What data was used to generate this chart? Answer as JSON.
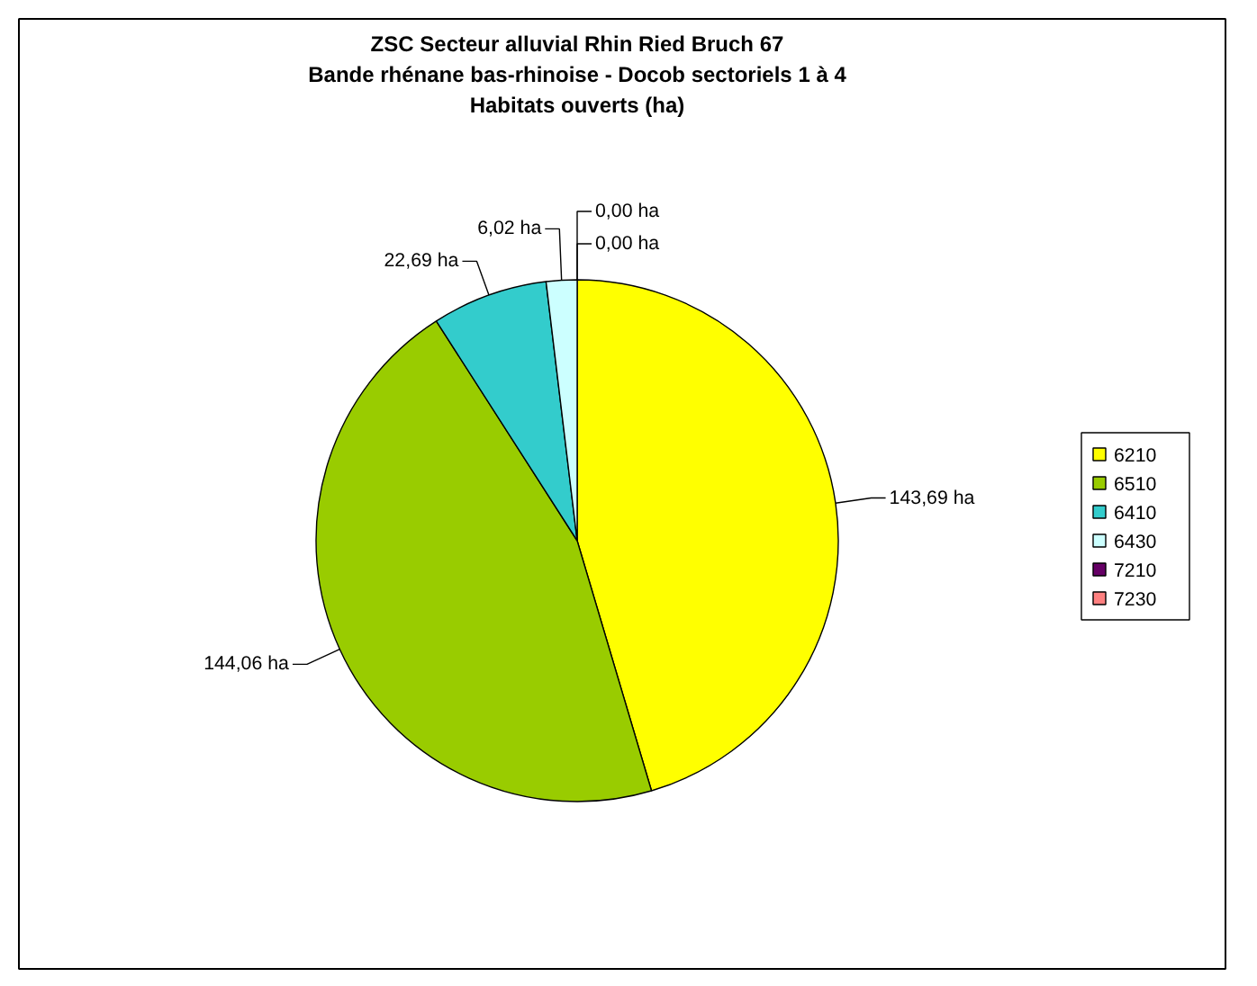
{
  "chart_data": {
    "type": "pie",
    "title": "ZSC Secteur alluvial Rhin Ried Bruch 67",
    "subtitle": "Bande rhénane bas-rhinoise - Docob sectoriels 1 à 4\nHabitats ouverts (ha)",
    "categories": [
      "6210",
      "6510",
      "6410",
      "6430",
      "7210",
      "7230"
    ],
    "values": [
      143.69,
      144.06,
      22.69,
      6.02,
      0.0,
      0.0
    ],
    "value_labels": [
      "143,69 ha",
      "144,06 ha",
      "22,69 ha",
      "6,02 ha",
      "0,00 ha",
      "0,00 ha"
    ],
    "colors": [
      "#ffff00",
      "#99cc00",
      "#33cccc",
      "#ccffff",
      "#660066",
      "#ff8080"
    ],
    "legend": "right"
  }
}
